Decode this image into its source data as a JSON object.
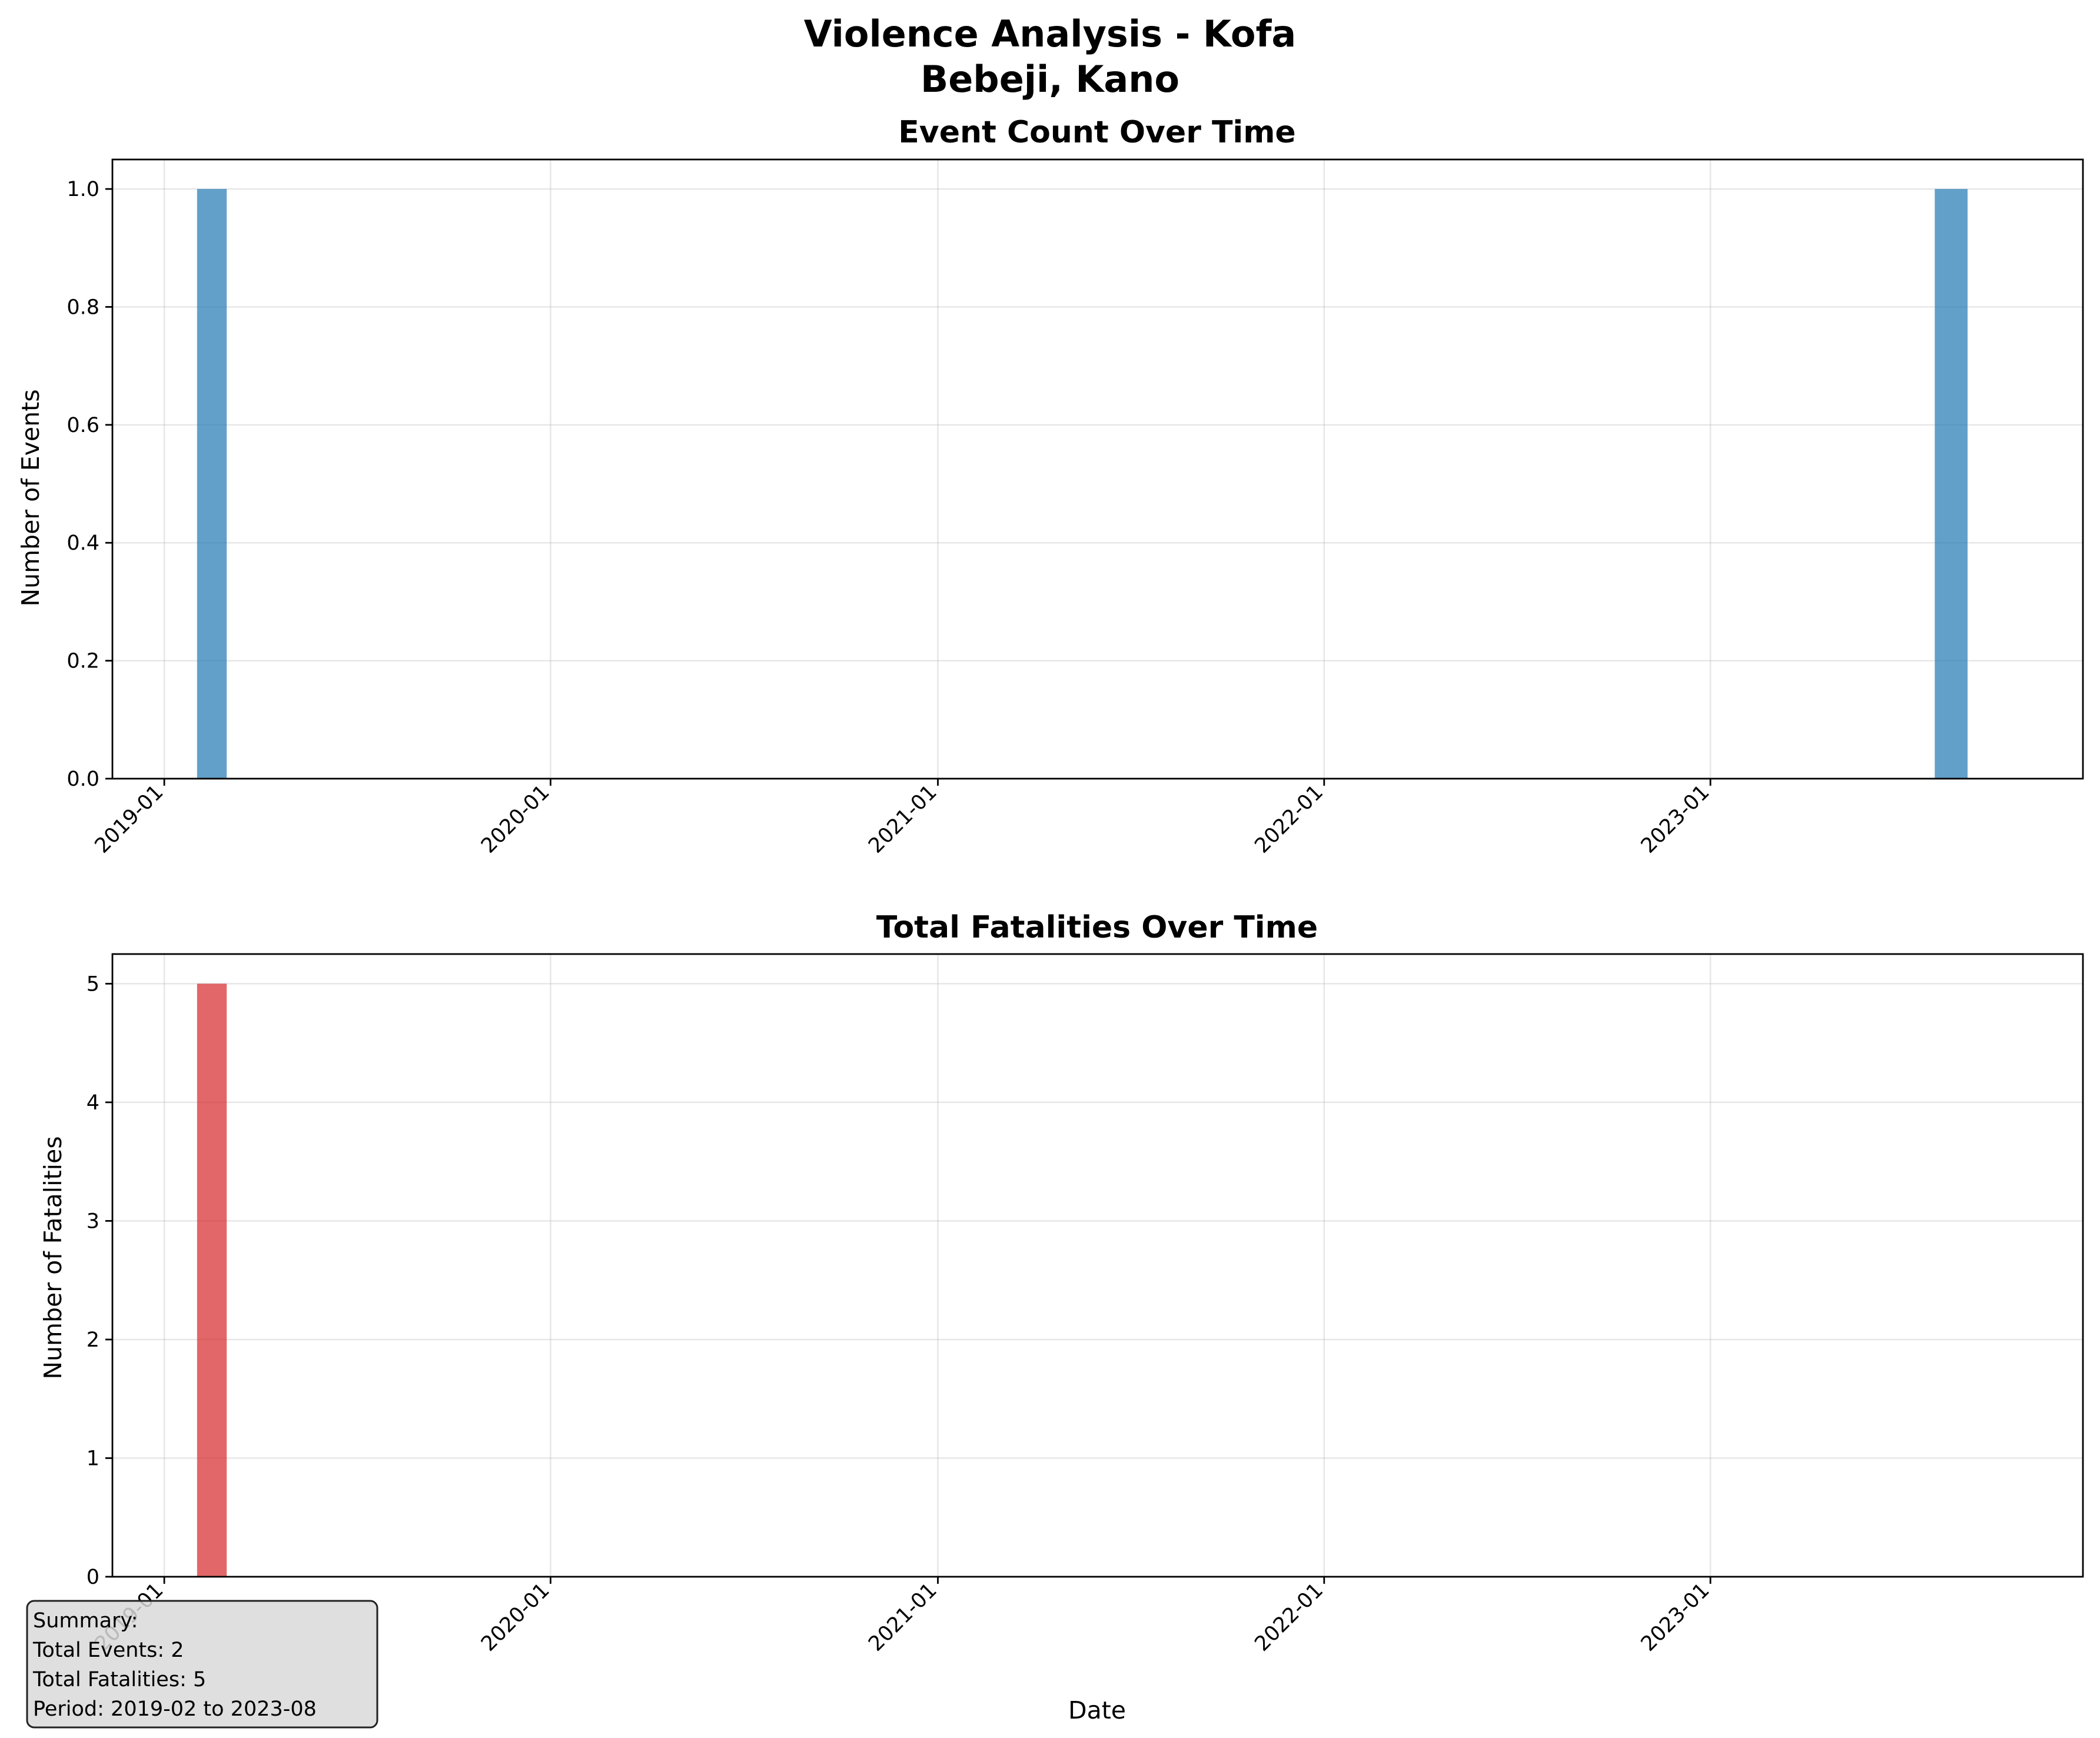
{
  "figure": {
    "title_line1": "Violence Analysis - Kofa",
    "title_line2": "Bebeji, Kano"
  },
  "chart_data": [
    {
      "type": "bar",
      "title": "Event Count Over Time",
      "xlabel": "",
      "ylabel": "Number of Events",
      "x_tick_labels": [
        "2019-01",
        "2020-01",
        "2021-01",
        "2022-01",
        "2023-01"
      ],
      "x_ticks": [
        "2019-01-01",
        "2020-01-01",
        "2021-01-01",
        "2022-01-01",
        "2023-01-01"
      ],
      "y_ticks": [
        0.0,
        0.2,
        0.4,
        0.6,
        0.8,
        1.0
      ],
      "y_tick_labels": [
        "0.0",
        "0.2",
        "0.4",
        "0.6",
        "0.8",
        "1.0"
      ],
      "xlim": [
        "2018-11-13",
        "2023-12-19"
      ],
      "ylim": [
        0,
        1.05
      ],
      "grid": true,
      "color": "#1f77b4",
      "bar_alpha": 0.7,
      "x": [
        "2019-02",
        "2023-08"
      ],
      "values": [
        1,
        1
      ]
    },
    {
      "type": "bar",
      "title": "Total Fatalities Over Time",
      "xlabel": "Date",
      "ylabel": "Number of Fatalities",
      "x_tick_labels": [
        "2019-01",
        "2020-01",
        "2021-01",
        "2022-01",
        "2023-01"
      ],
      "x_ticks": [
        "2019-01-01",
        "2020-01-01",
        "2021-01-01",
        "2022-01-01",
        "2023-01-01"
      ],
      "y_ticks": [
        0,
        1,
        2,
        3,
        4,
        5
      ],
      "y_tick_labels": [
        "0",
        "1",
        "2",
        "3",
        "4",
        "5"
      ],
      "xlim": [
        "2018-11-13",
        "2023-12-19"
      ],
      "ylim": [
        0,
        5.25
      ],
      "grid": true,
      "color": "#d62728",
      "bar_alpha": 0.7,
      "x": [
        "2019-02",
        "2023-08"
      ],
      "values": [
        5,
        0
      ]
    }
  ],
  "summary": {
    "heading": "Summary:",
    "total_events": "Total Events: 2",
    "total_fatalities": "Total Fatalities: 5",
    "period": "Period: 2019-02 to 2023-08"
  }
}
